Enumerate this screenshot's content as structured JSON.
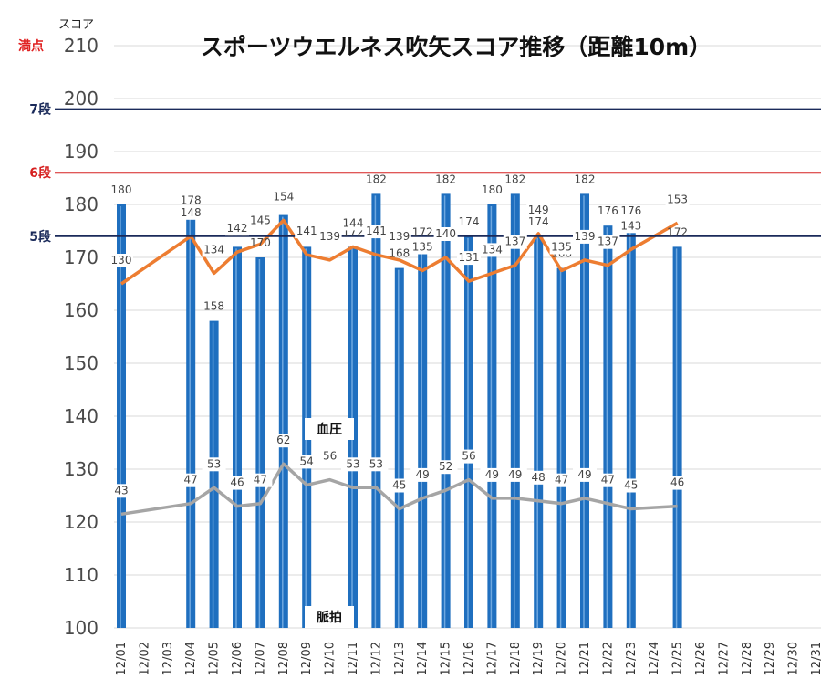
{
  "chart_data": {
    "type": "bar",
    "title": "スポーツウエルネス吹矢スコア推移（距離10m）",
    "ylabel": "スコア",
    "ylim": [
      100,
      210
    ],
    "yticks": [
      100,
      110,
      120,
      130,
      140,
      150,
      160,
      170,
      180,
      190,
      200,
      210
    ],
    "grid": true,
    "categories": [
      "12/01",
      "12/02",
      "12/03",
      "12/04",
      "12/05",
      "12/06",
      "12/07",
      "12/08",
      "12/09",
      "12/10",
      "12/11",
      "12/12",
      "12/13",
      "12/14",
      "12/15",
      "12/16",
      "12/17",
      "12/18",
      "12/19",
      "12/20",
      "12/21",
      "12/22",
      "12/23",
      "12/24",
      "12/25",
      "12/26",
      "12/27",
      "12/28",
      "12/29",
      "12/30",
      "12/31"
    ],
    "series": [
      {
        "name": "",
        "kind": "bar",
        "color": "#1f6fbf",
        "values": [
          180,
          null,
          null,
          178,
          158,
          172,
          170,
          178,
          172,
          null,
          172,
          182,
          168,
          172,
          182,
          174,
          180,
          182,
          174,
          168,
          182,
          176,
          176,
          null,
          172,
          null,
          null,
          null,
          null,
          null,
          null
        ]
      },
      {
        "name": "血圧",
        "kind": "line",
        "color": "#ed7d31",
        "values": [
          130,
          null,
          null,
          148,
          134,
          142,
          145,
          154,
          141,
          139,
          144,
          141,
          139,
          135,
          140,
          131,
          134,
          137,
          149,
          135,
          139,
          137,
          143,
          null,
          153,
          null,
          null,
          null,
          null,
          null,
          null
        ]
      },
      {
        "name": "脈拍",
        "kind": "line",
        "color": "#a5a5a5",
        "values": [
          43,
          null,
          null,
          47,
          53,
          46,
          47,
          62,
          54,
          56,
          53,
          53,
          45,
          49,
          52,
          56,
          49,
          49,
          48,
          47,
          49,
          47,
          45,
          null,
          46,
          null,
          null,
          null,
          null,
          null,
          null
        ]
      }
    ],
    "reference_lines": [
      {
        "label": "満点",
        "value": 210,
        "color": "#e02020"
      },
      {
        "label": "7段",
        "value": 198,
        "color": "#1a2a5a"
      },
      {
        "label": "6段",
        "value": 186,
        "color": "#d62020"
      },
      {
        "label": "5段",
        "value": 174,
        "color": "#1a2a5a"
      }
    ]
  }
}
